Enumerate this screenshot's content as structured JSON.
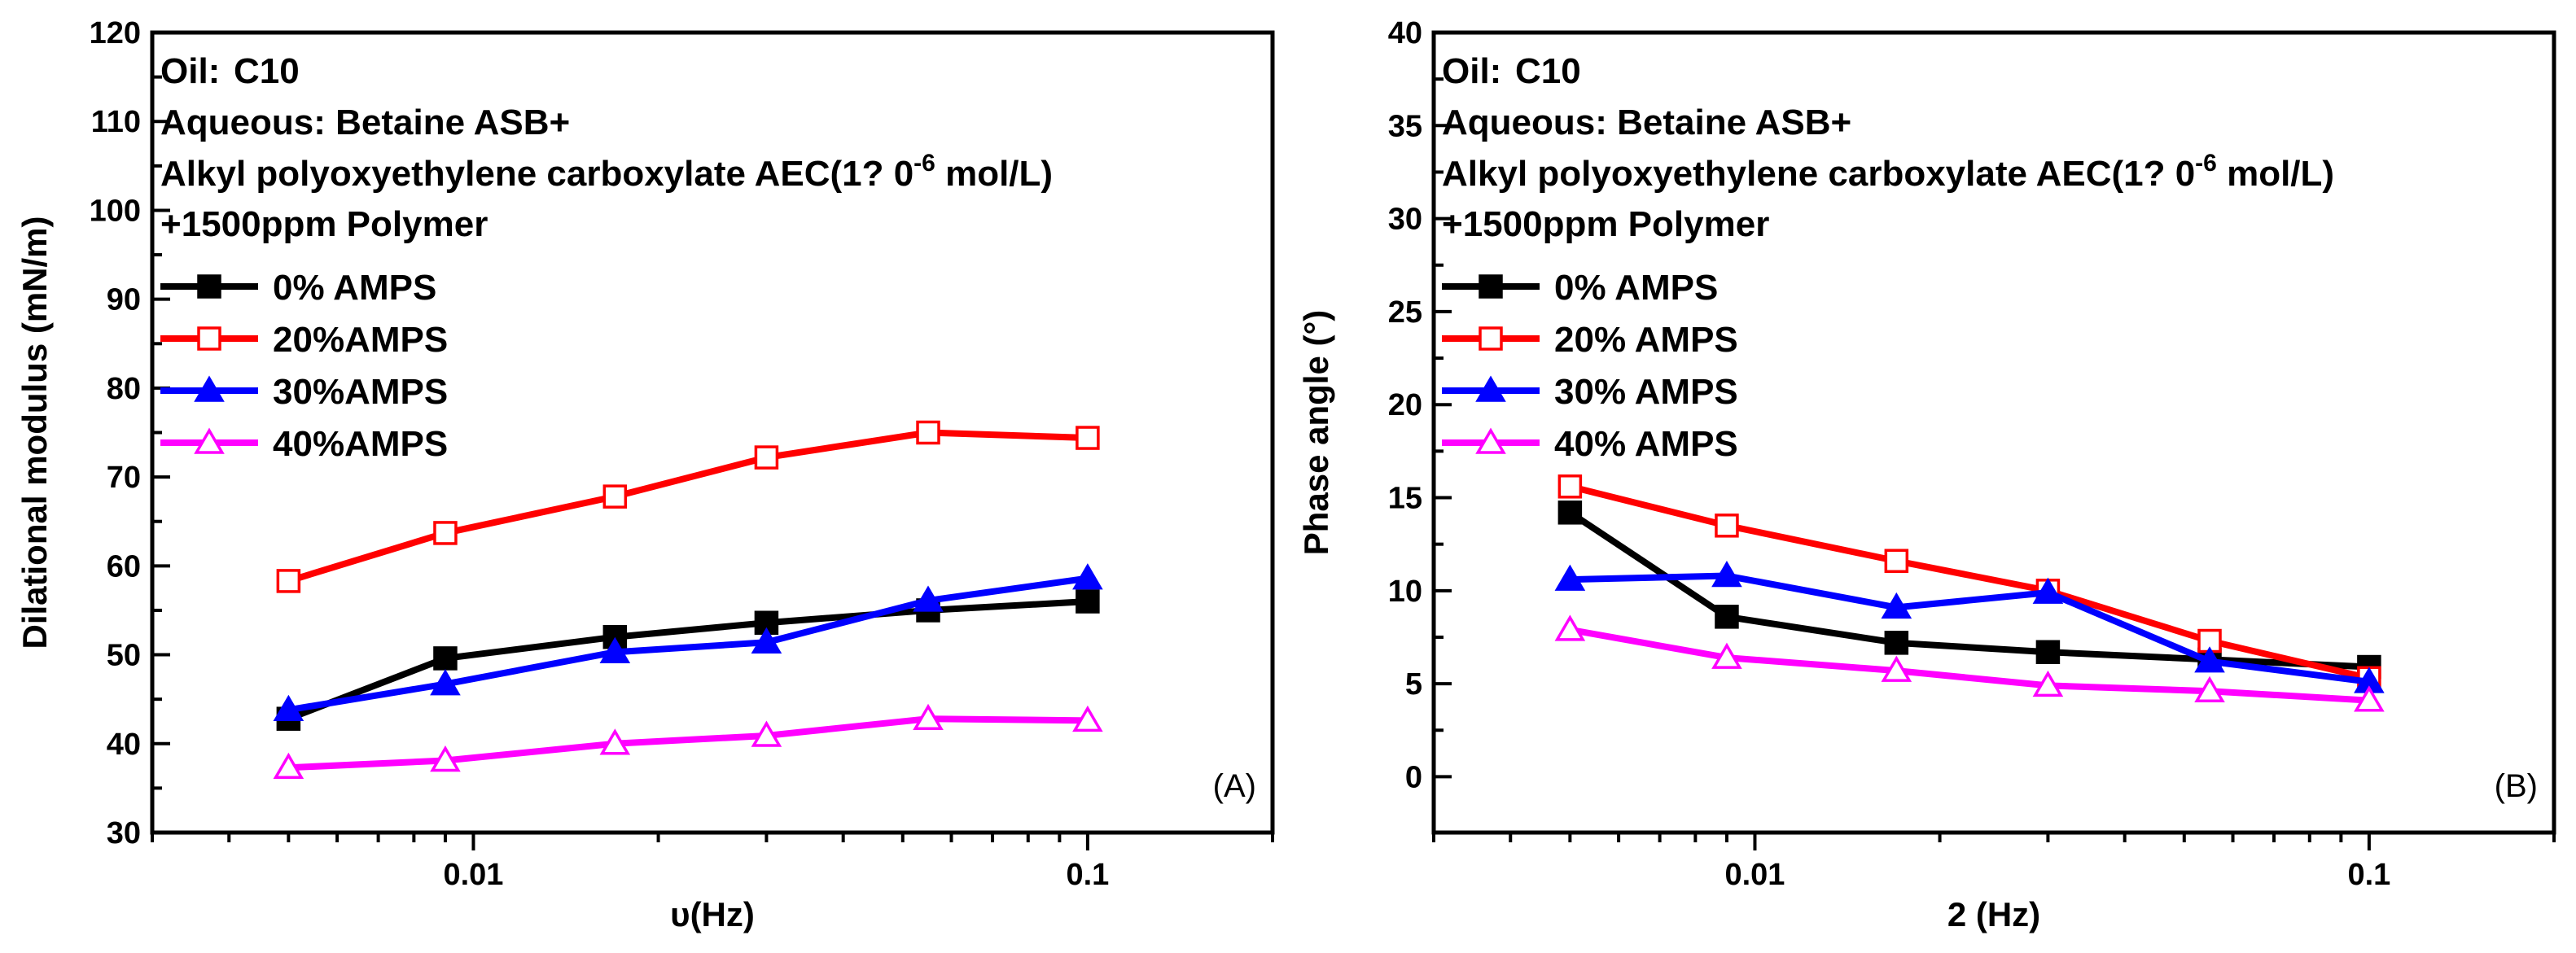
{
  "colors": {
    "black": "#000000",
    "red": "#ff0000",
    "blue": "#0000ff",
    "magenta": "#ff00ff"
  },
  "chart_data": [
    {
      "type": "line",
      "panel_label": "(A)",
      "xlabel": "υ(Hz)",
      "ylabel": "Dilational modulus (mN/m)",
      "xscale": "log",
      "xlim": [
        0.003,
        0.2
      ],
      "ylim": [
        30,
        120
      ],
      "xticks": [
        0.01,
        0.1
      ],
      "xtick_labels": [
        "0.01",
        "0.1"
      ],
      "yticks": [
        30,
        40,
        50,
        60,
        70,
        80,
        90,
        100,
        110,
        120
      ],
      "ytick_labels": [
        "30",
        "40",
        "50",
        "60",
        "70",
        "80",
        "90",
        "100",
        "110",
        "120"
      ],
      "annotations": {
        "oil_label": "Oil:",
        "oil_value": "C10",
        "aqueous": "Aqueous: Betaine ASB+",
        "surfactant_prefix": "Alkyl polyoxyethylene carboxylate AEC(1?  0",
        "surfactant_exp": "-6",
        "surfactant_unit": " mol/L)",
        "polymer": "+1500ppm Polymer"
      },
      "x": [
        0.005,
        0.009,
        0.017,
        0.03,
        0.055,
        0.1
      ],
      "series": [
        {
          "name": " 0% AMPS",
          "color": "#000000",
          "marker": "square-filled",
          "values": [
            42.8,
            49.6,
            52,
            53.6,
            55,
            56
          ]
        },
        {
          "name": "20%AMPS",
          "color": "#ff0000",
          "marker": "square-open",
          "values": [
            58.3,
            63.7,
            67.8,
            72.2,
            75,
            74.4
          ]
        },
        {
          "name": "30%AMPS",
          "color": "#0000ff",
          "marker": "triangle-filled",
          "values": [
            43.8,
            46.7,
            50.3,
            51.4,
            56.1,
            58.6
          ]
        },
        {
          "name": "40%AMPS",
          "color": "#ff00ff",
          "marker": "triangle-open",
          "values": [
            37.3,
            38.1,
            40,
            40.9,
            42.8,
            42.6
          ]
        }
      ],
      "legend": "upper-left"
    },
    {
      "type": "line",
      "panel_label": "(B)",
      "xlabel": "2 (Hz)",
      "ylabel": "Phase angle (°)",
      "xscale": "log",
      "xlim": [
        0.003,
        0.2
      ],
      "ylim": [
        -3,
        40
      ],
      "xticks": [
        0.01,
        0.1
      ],
      "xtick_labels": [
        "0.01",
        "0.1"
      ],
      "yticks": [
        0,
        5,
        10,
        15,
        20,
        25,
        30,
        35,
        40
      ],
      "ytick_labels": [
        "0",
        "5",
        "10",
        "15",
        "20",
        "25",
        "30",
        "35",
        "40"
      ],
      "annotations": {
        "oil_label": "Oil:",
        "oil_value": "C10",
        "aqueous": "Aqueous: Betaine ASB+",
        "surfactant_prefix": "Alkyl polyoxyethylene carboxylate AEC(1?  0",
        "surfactant_exp": "-6",
        "surfactant_unit": " mol/L)",
        "polymer": "+1500ppm Polymer"
      },
      "x": [
        0.005,
        0.009,
        0.017,
        0.03,
        0.055,
        0.1
      ],
      "series": [
        {
          "name": "  0% AMPS",
          "color": "#000000",
          "marker": "square-filled",
          "values": [
            14.2,
            8.6,
            7.2,
            6.7,
            6.3,
            5.9
          ]
        },
        {
          "name": "20% AMPS",
          "color": "#ff0000",
          "marker": "square-open",
          "values": [
            15.6,
            13.5,
            11.6,
            10,
            7.3,
            5.3
          ]
        },
        {
          "name": "30% AMPS",
          "color": "#0000ff",
          "marker": "triangle-filled",
          "values": [
            10.6,
            10.8,
            9.1,
            9.9,
            6.2,
            5.1
          ]
        },
        {
          "name": "40% AMPS",
          "color": "#ff00ff",
          "marker": "triangle-open",
          "values": [
            7.9,
            6.4,
            5.7,
            4.9,
            4.6,
            4.1
          ]
        }
      ],
      "legend": "upper-left"
    }
  ]
}
